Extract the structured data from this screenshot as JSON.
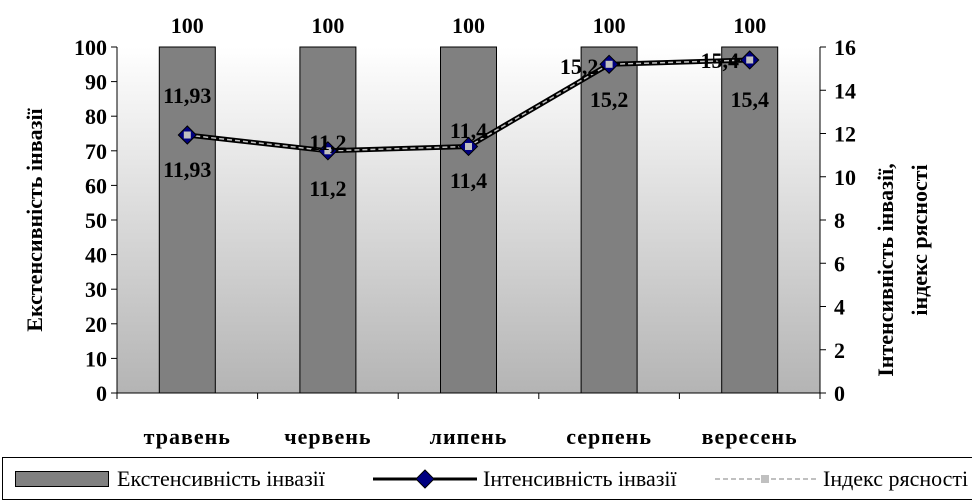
{
  "chart_data": {
    "type": "bar",
    "categories": [
      "травень",
      "червень",
      "липень",
      "серпень",
      "вересень"
    ],
    "series": [
      {
        "name": "Екстенсивність інвазії",
        "type": "bar",
        "axis": "left",
        "values": [
          100,
          100,
          100,
          100,
          100
        ],
        "labels": [
          "100",
          "100",
          "100",
          "100",
          "100"
        ]
      },
      {
        "name": "Інтенсивність інвазії",
        "type": "line",
        "axis": "right",
        "values": [
          11.93,
          11.2,
          11.4,
          15.2,
          15.4
        ],
        "labels": [
          "11,93",
          "11,2",
          "11,4",
          "15,2",
          "15,4"
        ]
      },
      {
        "name": "Індекс рясності",
        "type": "line",
        "axis": "right",
        "values": [
          11.93,
          11.2,
          11.4,
          15.2,
          15.4
        ],
        "labels": [
          "11,93",
          "11,2",
          "11,4",
          "15,2",
          "15,4"
        ]
      }
    ],
    "ylabel": "Екстенсивність інвазії",
    "y2label_line1": "Інтенсивність інвазії,",
    "y2label_line2": "індекс рясності",
    "ylim": [
      0,
      100
    ],
    "y2lim": [
      0,
      16
    ],
    "yticks": [
      "0",
      "10",
      "20",
      "30",
      "40",
      "50",
      "60",
      "70",
      "80",
      "90",
      "100"
    ],
    "y2ticks": [
      "0",
      "2",
      "4",
      "6",
      "8",
      "10",
      "12",
      "14",
      "16"
    ],
    "legend_position": "bottom",
    "colors": {
      "bar": "#808080",
      "line": "#000000",
      "marker": "#000080",
      "marker2": "#c0c0c0"
    }
  }
}
